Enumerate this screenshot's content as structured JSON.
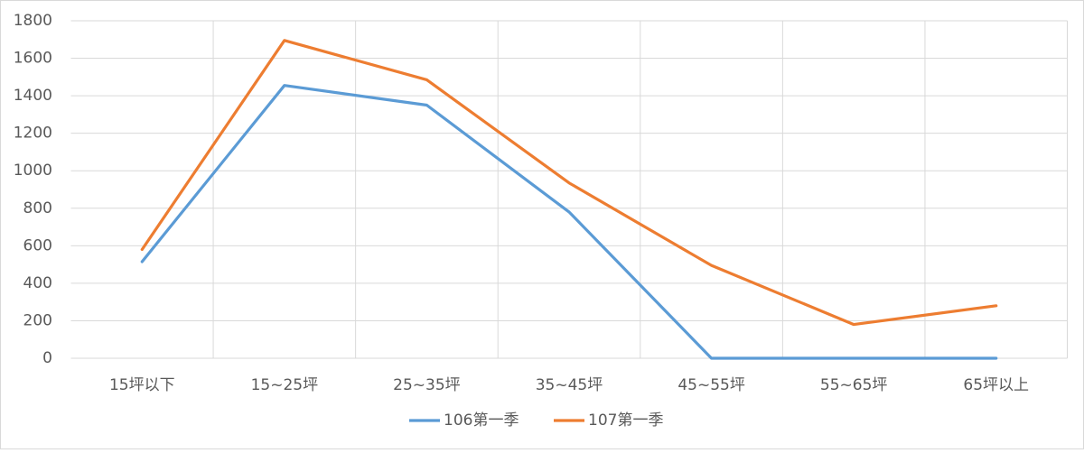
{
  "chart_data": {
    "type": "line",
    "categories": [
      "15坪以下",
      "15~25坪",
      "25~35坪",
      "35~45坪",
      "45~55坪",
      "55~65坪",
      "65坪以上"
    ],
    "series": [
      {
        "name": "106第一季",
        "color": "#5b9bd5",
        "values": [
          515,
          1455,
          1350,
          780,
          0,
          0,
          0
        ]
      },
      {
        "name": "107第一季",
        "color": "#ed7d31",
        "values": [
          580,
          1695,
          1485,
          935,
          495,
          180,
          280
        ]
      }
    ],
    "ylim": [
      0,
      1800
    ],
    "yticks": [
      0,
      200,
      400,
      600,
      800,
      1000,
      1200,
      1400,
      1600,
      1800
    ],
    "grid": true,
    "legend": "bottom"
  }
}
